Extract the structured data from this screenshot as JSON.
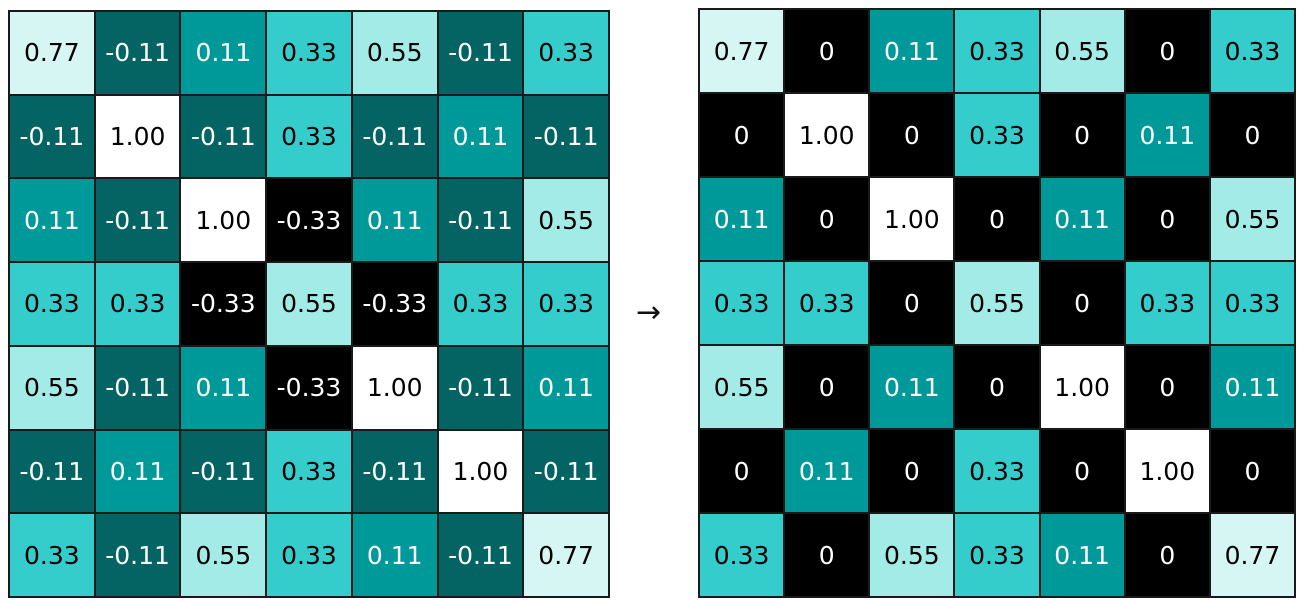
{
  "arrow": "→",
  "colors": {
    "-0.33": {
      "bg": "#000000",
      "fg": "#ffffff"
    },
    "0": {
      "bg": "#000000",
      "fg": "#ffffff"
    },
    "-0.11": {
      "bg": "#046464",
      "fg": "#ffffff"
    },
    "0.11": {
      "bg": "#00999a",
      "fg": "#ffffff"
    },
    "0.33": {
      "bg": "#35cccc",
      "fg": "#000000"
    },
    "0.55": {
      "bg": "#a3ebe7",
      "fg": "#000000"
    },
    "0.77": {
      "bg": "#d6f6f4",
      "fg": "#000000"
    },
    "1.00": {
      "bg": "#ffffff",
      "fg": "#000000"
    }
  },
  "input_matrix": [
    [
      "0.77",
      "-0.11",
      "0.11",
      "0.33",
      "0.55",
      "-0.11",
      "0.33"
    ],
    [
      "-0.11",
      "1.00",
      "-0.11",
      "0.33",
      "-0.11",
      "0.11",
      "-0.11"
    ],
    [
      "0.11",
      "-0.11",
      "1.00",
      "-0.33",
      "0.11",
      "-0.11",
      "0.55"
    ],
    [
      "0.33",
      "0.33",
      "-0.33",
      "0.55",
      "-0.33",
      "0.33",
      "0.33"
    ],
    [
      "0.55",
      "-0.11",
      "0.11",
      "-0.33",
      "1.00",
      "-0.11",
      "0.11"
    ],
    [
      "-0.11",
      "0.11",
      "-0.11",
      "0.33",
      "-0.11",
      "1.00",
      "-0.11"
    ],
    [
      "0.33",
      "-0.11",
      "0.55",
      "0.33",
      "0.11",
      "-0.11",
      "0.77"
    ]
  ],
  "output_matrix": [
    [
      "0.77",
      "0",
      "0.11",
      "0.33",
      "0.55",
      "0",
      "0.33"
    ],
    [
      "0",
      "1.00",
      "0",
      "0.33",
      "0",
      "0.11",
      "0"
    ],
    [
      "0.11",
      "0",
      "1.00",
      "0",
      "0.11",
      "0",
      "0.55"
    ],
    [
      "0.33",
      "0.33",
      "0",
      "0.55",
      "0",
      "0.33",
      "0.33"
    ],
    [
      "0.55",
      "0",
      "0.11",
      "0",
      "1.00",
      "0",
      "0.11"
    ],
    [
      "0",
      "0.11",
      "0",
      "0.33",
      "0",
      "1.00",
      "0"
    ],
    [
      "0.33",
      "0",
      "0.55",
      "0.33",
      "0.11",
      "0",
      "0.77"
    ]
  ]
}
